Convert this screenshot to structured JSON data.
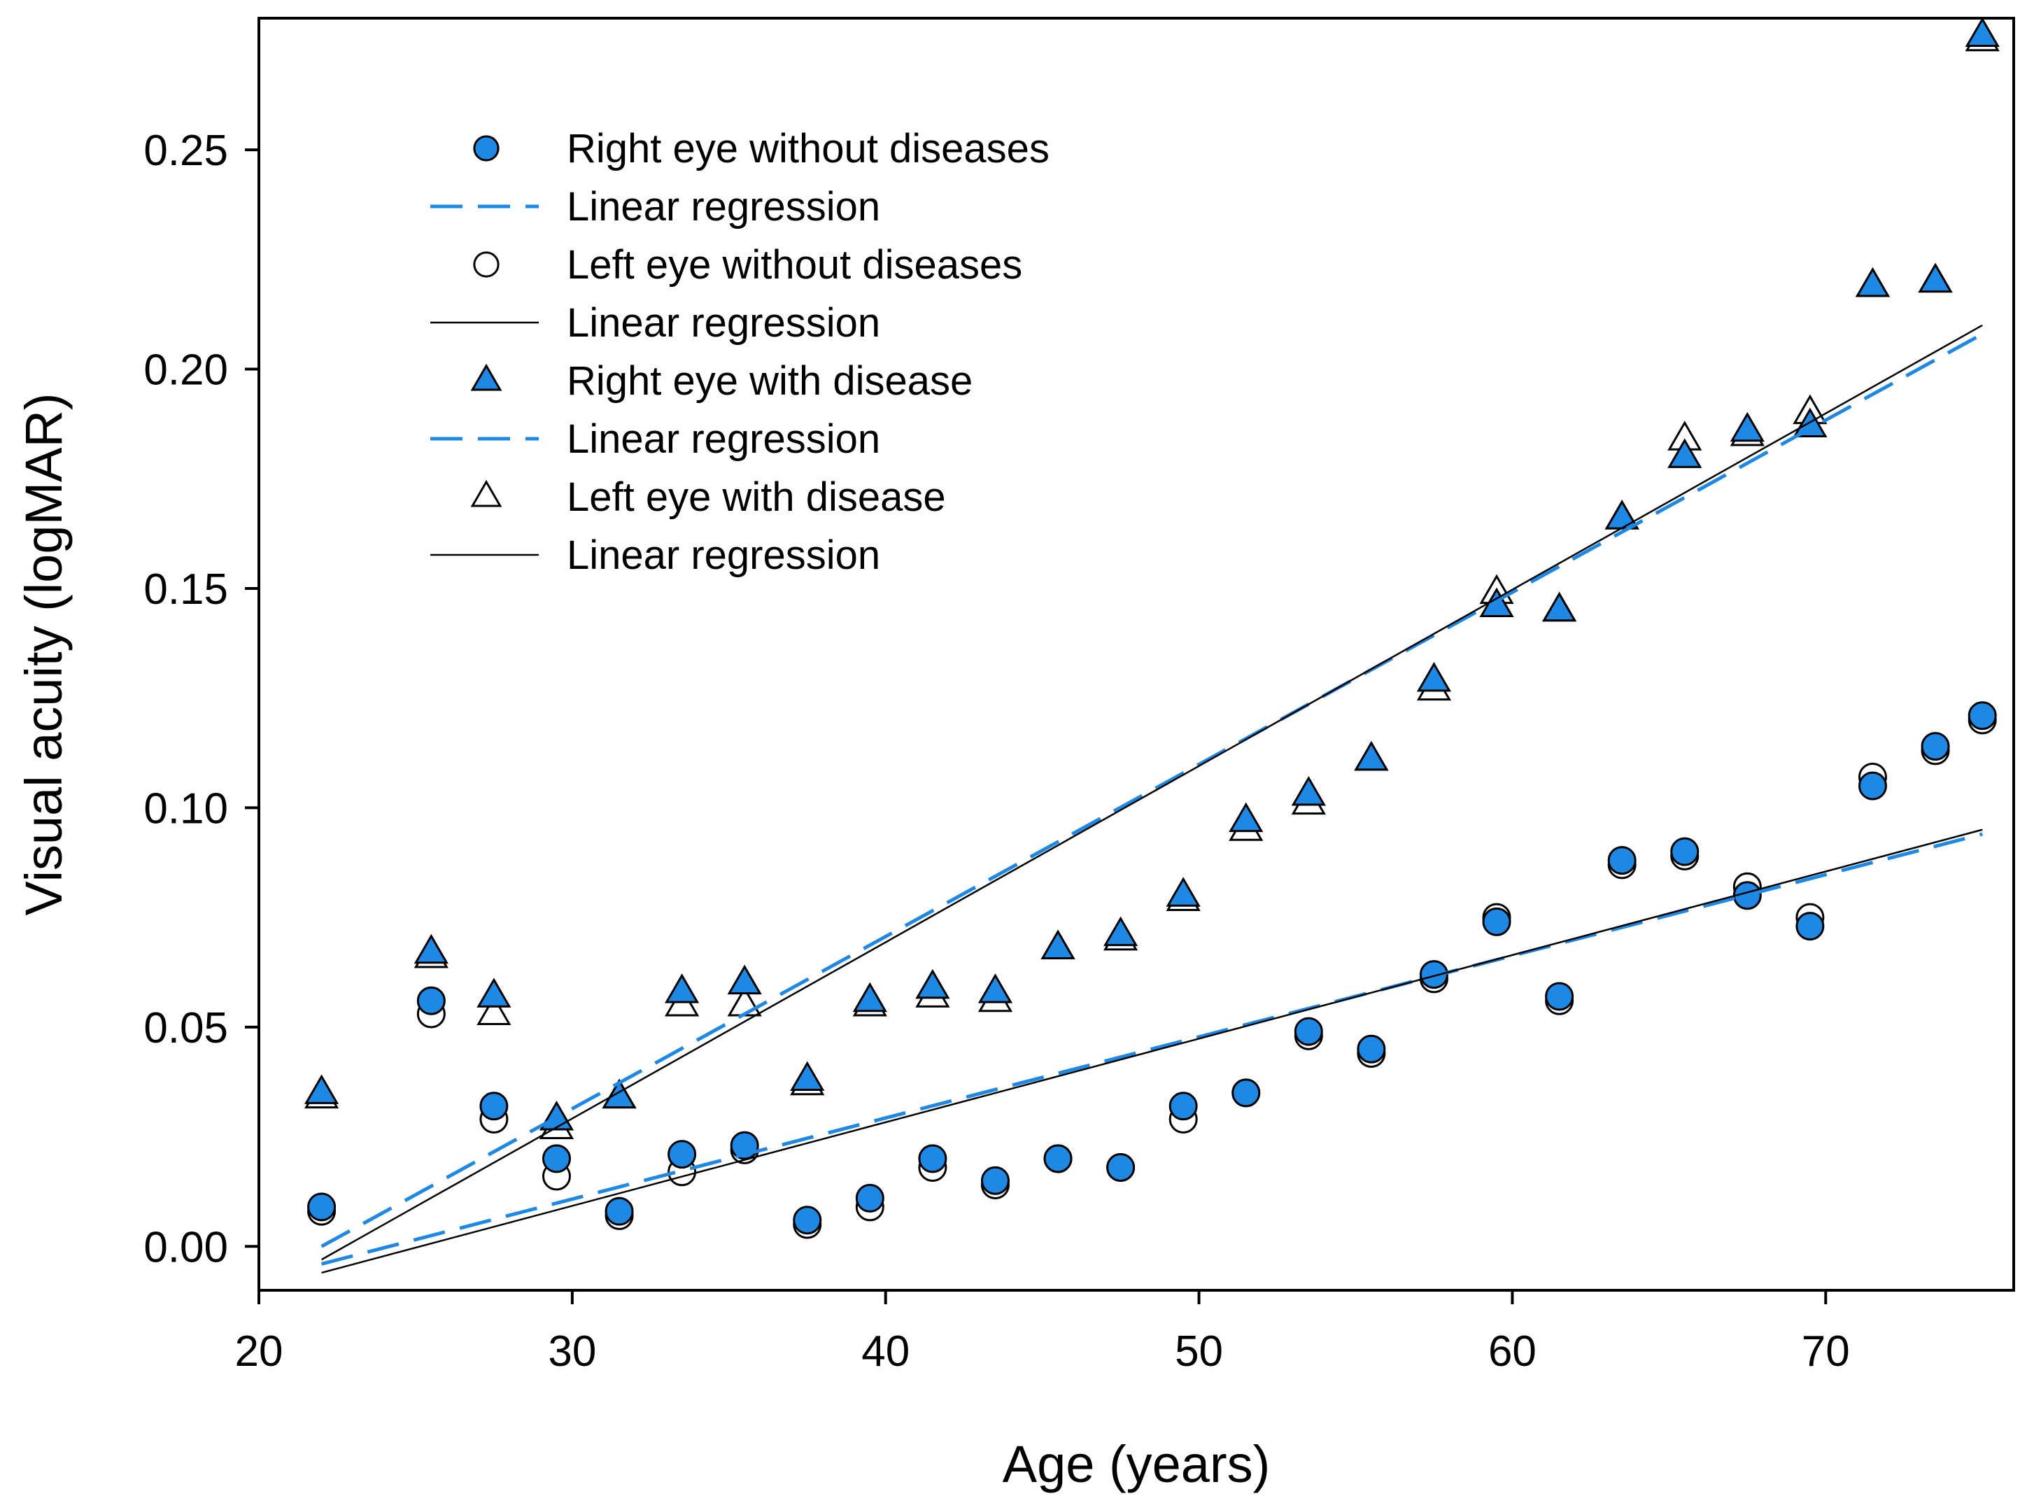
{
  "chart_data": {
    "type": "scatter",
    "title": "",
    "xlabel": "Age (years)",
    "ylabel": "Visual acuity (logMAR)",
    "xlim": [
      20,
      76
    ],
    "ylim": [
      -0.01,
      0.28
    ],
    "x_ticks": [
      "20",
      "30",
      "40",
      "50",
      "60",
      "70"
    ],
    "y_ticks": [
      "0.00",
      "0.05",
      "0.10",
      "0.15",
      "0.20",
      "0.25"
    ],
    "grid": false,
    "legend_position": "top-left",
    "colors": {
      "blue": "#1E88E5",
      "black": "#000000",
      "white": "#ffffff"
    },
    "series": [
      {
        "name": "Right eye without diseases",
        "marker": "circle-filled",
        "x": [
          22,
          25.5,
          27.5,
          29.5,
          31.5,
          33.5,
          35.5,
          37.5,
          39.5,
          41.5,
          43.5,
          45.5,
          47.5,
          49.5,
          51.5,
          53.5,
          55.5,
          57.5,
          59.5,
          61.5,
          63.5,
          65.5,
          67.5,
          69.5,
          71.5,
          73.5,
          75
        ],
        "y": [
          0.009,
          0.056,
          0.032,
          0.02,
          0.008,
          0.021,
          0.023,
          0.006,
          0.011,
          0.02,
          0.015,
          0.02,
          0.018,
          0.032,
          0.035,
          0.049,
          0.045,
          0.062,
          0.074,
          0.057,
          0.088,
          0.09,
          0.08,
          0.073,
          0.105,
          0.114,
          0.121
        ]
      },
      {
        "name": "Linear regression",
        "line": "dashed-blue",
        "x": [
          22,
          75
        ],
        "y": [
          -0.004,
          0.094
        ]
      },
      {
        "name": "Left eye without diseases",
        "marker": "circle-open",
        "x": [
          22,
          25.5,
          27.5,
          29.5,
          31.5,
          33.5,
          35.5,
          37.5,
          39.5,
          41.5,
          43.5,
          45.5,
          47.5,
          49.5,
          51.5,
          53.5,
          55.5,
          57.5,
          59.5,
          61.5,
          63.5,
          65.5,
          67.5,
          69.5,
          71.5,
          73.5,
          75
        ],
        "y": [
          0.008,
          0.053,
          0.029,
          0.016,
          0.007,
          0.017,
          0.022,
          0.005,
          0.009,
          0.018,
          0.014,
          0.02,
          0.018,
          0.029,
          0.035,
          0.048,
          0.044,
          0.061,
          0.075,
          0.056,
          0.087,
          0.089,
          0.082,
          0.075,
          0.107,
          0.113,
          0.12
        ]
      },
      {
        "name": "Linear regression",
        "line": "solid-black",
        "x": [
          22,
          75
        ],
        "y": [
          -0.006,
          0.095
        ]
      },
      {
        "name": "Right eye with disease",
        "marker": "triangle-filled",
        "x": [
          22,
          25.5,
          27.5,
          29.5,
          31.5,
          33.5,
          35.5,
          37.5,
          39.5,
          41.5,
          43.5,
          45.5,
          47.5,
          49.5,
          51.5,
          53.5,
          55.5,
          57.5,
          59.5,
          61.5,
          63.5,
          65.5,
          67.5,
          69.5,
          71.5,
          73.5,
          75
        ],
        "y": [
          0.035,
          0.067,
          0.057,
          0.029,
          0.034,
          0.058,
          0.06,
          0.038,
          0.056,
          0.059,
          0.058,
          0.068,
          0.071,
          0.08,
          0.097,
          0.103,
          0.111,
          0.129,
          0.146,
          0.145,
          0.166,
          0.18,
          0.186,
          0.187,
          0.219,
          0.22,
          0.276
        ]
      },
      {
        "name": "Linear regression",
        "line": "dashed-blue",
        "x": [
          22,
          75
        ],
        "y": [
          0.0,
          0.208
        ]
      },
      {
        "name": "Left eye with disease",
        "marker": "triangle-open",
        "x": [
          22,
          25.5,
          27.5,
          29.5,
          31.5,
          33.5,
          35.5,
          37.5,
          39.5,
          41.5,
          43.5,
          45.5,
          47.5,
          49.5,
          51.5,
          53.5,
          55.5,
          57.5,
          59.5,
          61.5,
          63.5,
          65.5,
          67.5,
          69.5,
          71.5,
          73.5,
          75
        ],
        "y": [
          0.034,
          0.066,
          0.053,
          0.027,
          0.034,
          0.055,
          0.055,
          0.037,
          0.055,
          0.057,
          0.056,
          0.068,
          0.07,
          0.079,
          0.095,
          0.101,
          0.111,
          0.127,
          0.149,
          0.145,
          0.166,
          0.184,
          0.185,
          0.19,
          0.219,
          0.22,
          0.275
        ]
      },
      {
        "name": "Linear regression",
        "line": "solid-black",
        "x": [
          22,
          75
        ],
        "y": [
          -0.003,
          0.21
        ]
      }
    ]
  }
}
